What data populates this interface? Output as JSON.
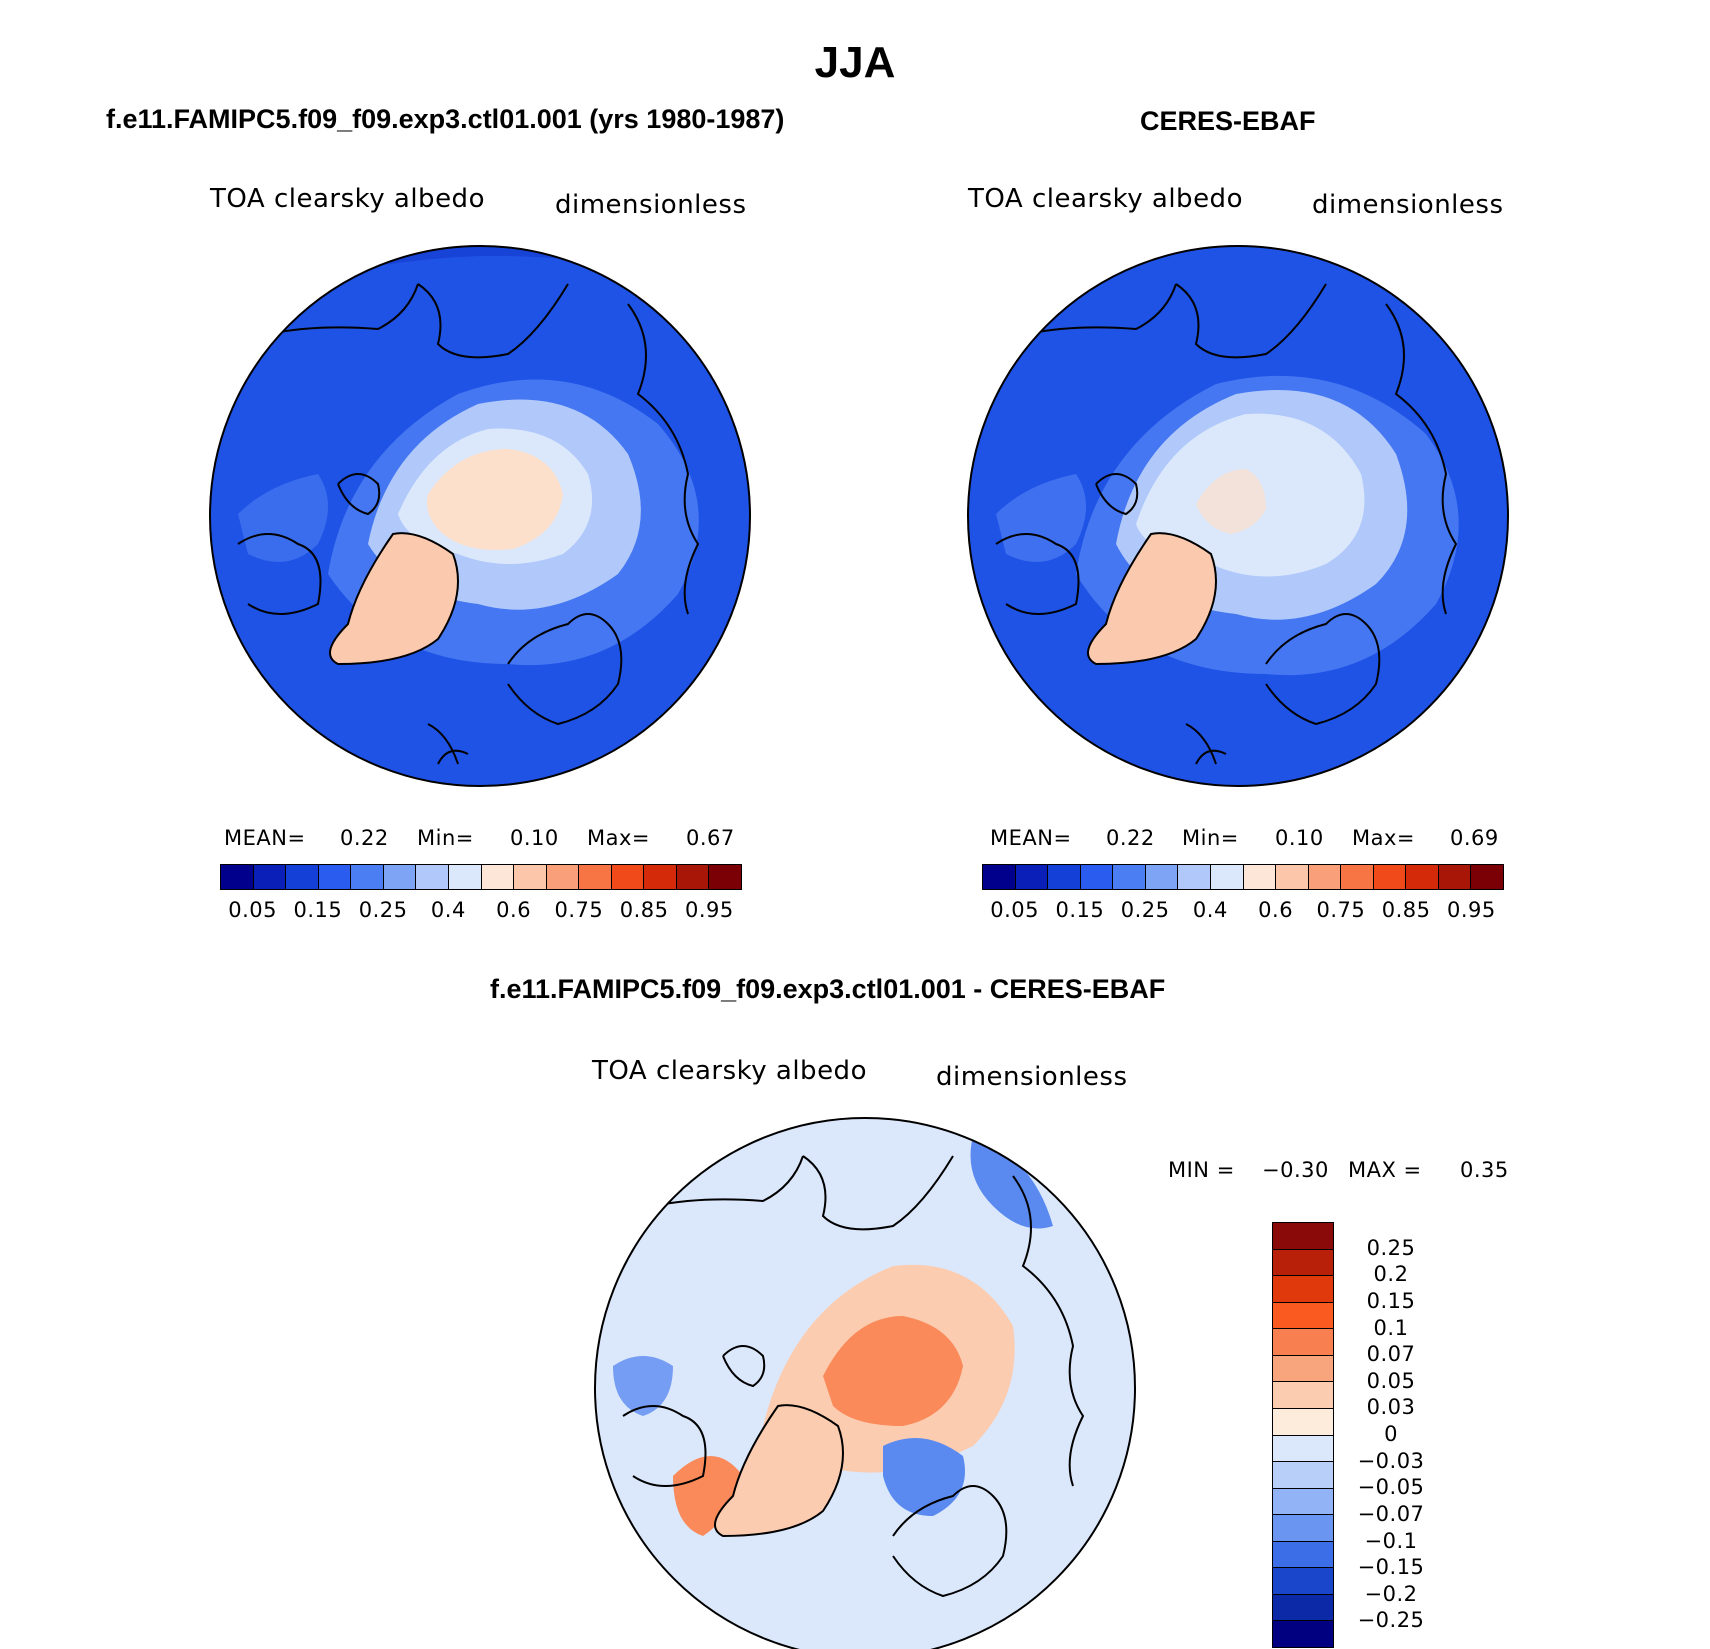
{
  "title": "JJA",
  "panels": [
    {
      "title": "f.e11.FAMIPC5.f09_f09.exp3.ctl01.001 (yrs 1980-1987)",
      "variable": "TOA clearsky albedo",
      "units": "dimensionless",
      "stats": {
        "mean_label": "MEAN=",
        "mean": "0.22",
        "min_label": "Min=",
        "min": "0.10",
        "max_label": "Max=",
        "max": "0.67"
      }
    },
    {
      "title": "CERES-EBAF",
      "variable": "TOA clearsky albedo",
      "units": "dimensionless",
      "stats": {
        "mean_label": "MEAN=",
        "mean": "0.22",
        "min_label": "Min=",
        "min": "0.10",
        "max_label": "Max=",
        "max": "0.69"
      }
    },
    {
      "title": "f.e11.FAMIPC5.f09_f09.exp3.ctl01.001 - CERES-EBAF",
      "variable": "TOA clearsky albedo",
      "units": "dimensionless",
      "stats": {
        "min_label": "MIN =",
        "min": "−0.30",
        "max_label": "MAX =",
        "max": "0.35"
      }
    }
  ],
  "colorbars": {
    "absolute": {
      "labels": [
        "0.05",
        "0.15",
        "0.25",
        "0.4",
        "0.6",
        "0.75",
        "0.85",
        "0.95"
      ],
      "colors": [
        "#00008c",
        "#0a1fb8",
        "#1540d8",
        "#2a5cf0",
        "#4b7ef2",
        "#7ea4f6",
        "#b0c8fa",
        "#dbe8fc",
        "#fde6d8",
        "#fbc6aa",
        "#f9a07a",
        "#f77445",
        "#f04a1a",
        "#d42a0a",
        "#a81608",
        "#7a0005"
      ]
    },
    "difference": {
      "labels": [
        "0.25",
        "0.2",
        "0.15",
        "0.1",
        "0.07",
        "0.05",
        "0.03",
        "0",
        "−0.03",
        "−0.05",
        "−0.07",
        "−0.1",
        "−0.15",
        "−0.2",
        "−0.25"
      ],
      "colors": [
        "#8a0a0a",
        "#b8200a",
        "#e03a0c",
        "#fa5a20",
        "#f88050",
        "#f8a47c",
        "#fcccb0",
        "#fdebdc",
        "#dbe8fc",
        "#b8cffa",
        "#92b4f6",
        "#6a96f2",
        "#3c6ee8",
        "#1a46cc",
        "#0c2aa8",
        "#000080"
      ]
    }
  },
  "map_layers": {
    "absolute_ocean": "#1f53e6",
    "absolute_rim": "#1744d6",
    "absolute_mid": "#4b7ef2",
    "absolute_ice_outer": "#b0c8fa",
    "absolute_ice_inner": "#dbe8fc",
    "absolute_high": "#fde0cc",
    "absolute_greenland": "#fbc9ae",
    "diff_background": "#dbe8fc",
    "diff_warm": "#fa8a5a",
    "diff_warm_light": "#fcccb0",
    "diff_cool": "#5a8af0",
    "coast": "#000000"
  }
}
